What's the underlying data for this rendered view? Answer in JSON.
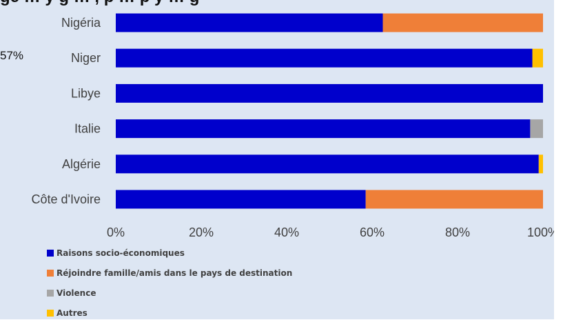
{
  "colors": {
    "background": "#dde6f3",
    "socio": "#0000cc",
    "famille": "#ef7f38",
    "violence": "#a6a6a6",
    "autres": "#ffc000"
  },
  "header": {
    "title_fragment": "ge … y g … , p … p y … g",
    "side_fragment": "57%"
  },
  "chart_data": {
    "type": "bar",
    "orientation": "horizontal",
    "stacked": true,
    "title": "",
    "xlabel": "",
    "ylabel": "",
    "categories": [
      "Nigéria",
      "Niger",
      "Libye",
      "Italie",
      "Algérie",
      "Côte d'Ivoire"
    ],
    "xlim": [
      0,
      100
    ],
    "x_ticks": [
      "0%",
      "20%",
      "40%",
      "60%",
      "80%",
      "100%"
    ],
    "grid": false,
    "legend_position": "bottom-left",
    "series": [
      {
        "name": "Raisons socio-économiques",
        "color": "#0000cc",
        "values": [
          62.5,
          97.5,
          100,
          97,
          99,
          58.5
        ]
      },
      {
        "name": "Réjoindre famille/amis dans le pays de destination",
        "color": "#ef7f38",
        "values": [
          37.5,
          0,
          0,
          0,
          0,
          41.5
        ]
      },
      {
        "name": "Violence",
        "color": "#a6a6a6",
        "values": [
          0,
          0,
          0,
          3,
          0,
          0
        ]
      },
      {
        "name": "Autres",
        "color": "#ffc000",
        "values": [
          0,
          2.5,
          0,
          0,
          1,
          0
        ]
      }
    ]
  }
}
